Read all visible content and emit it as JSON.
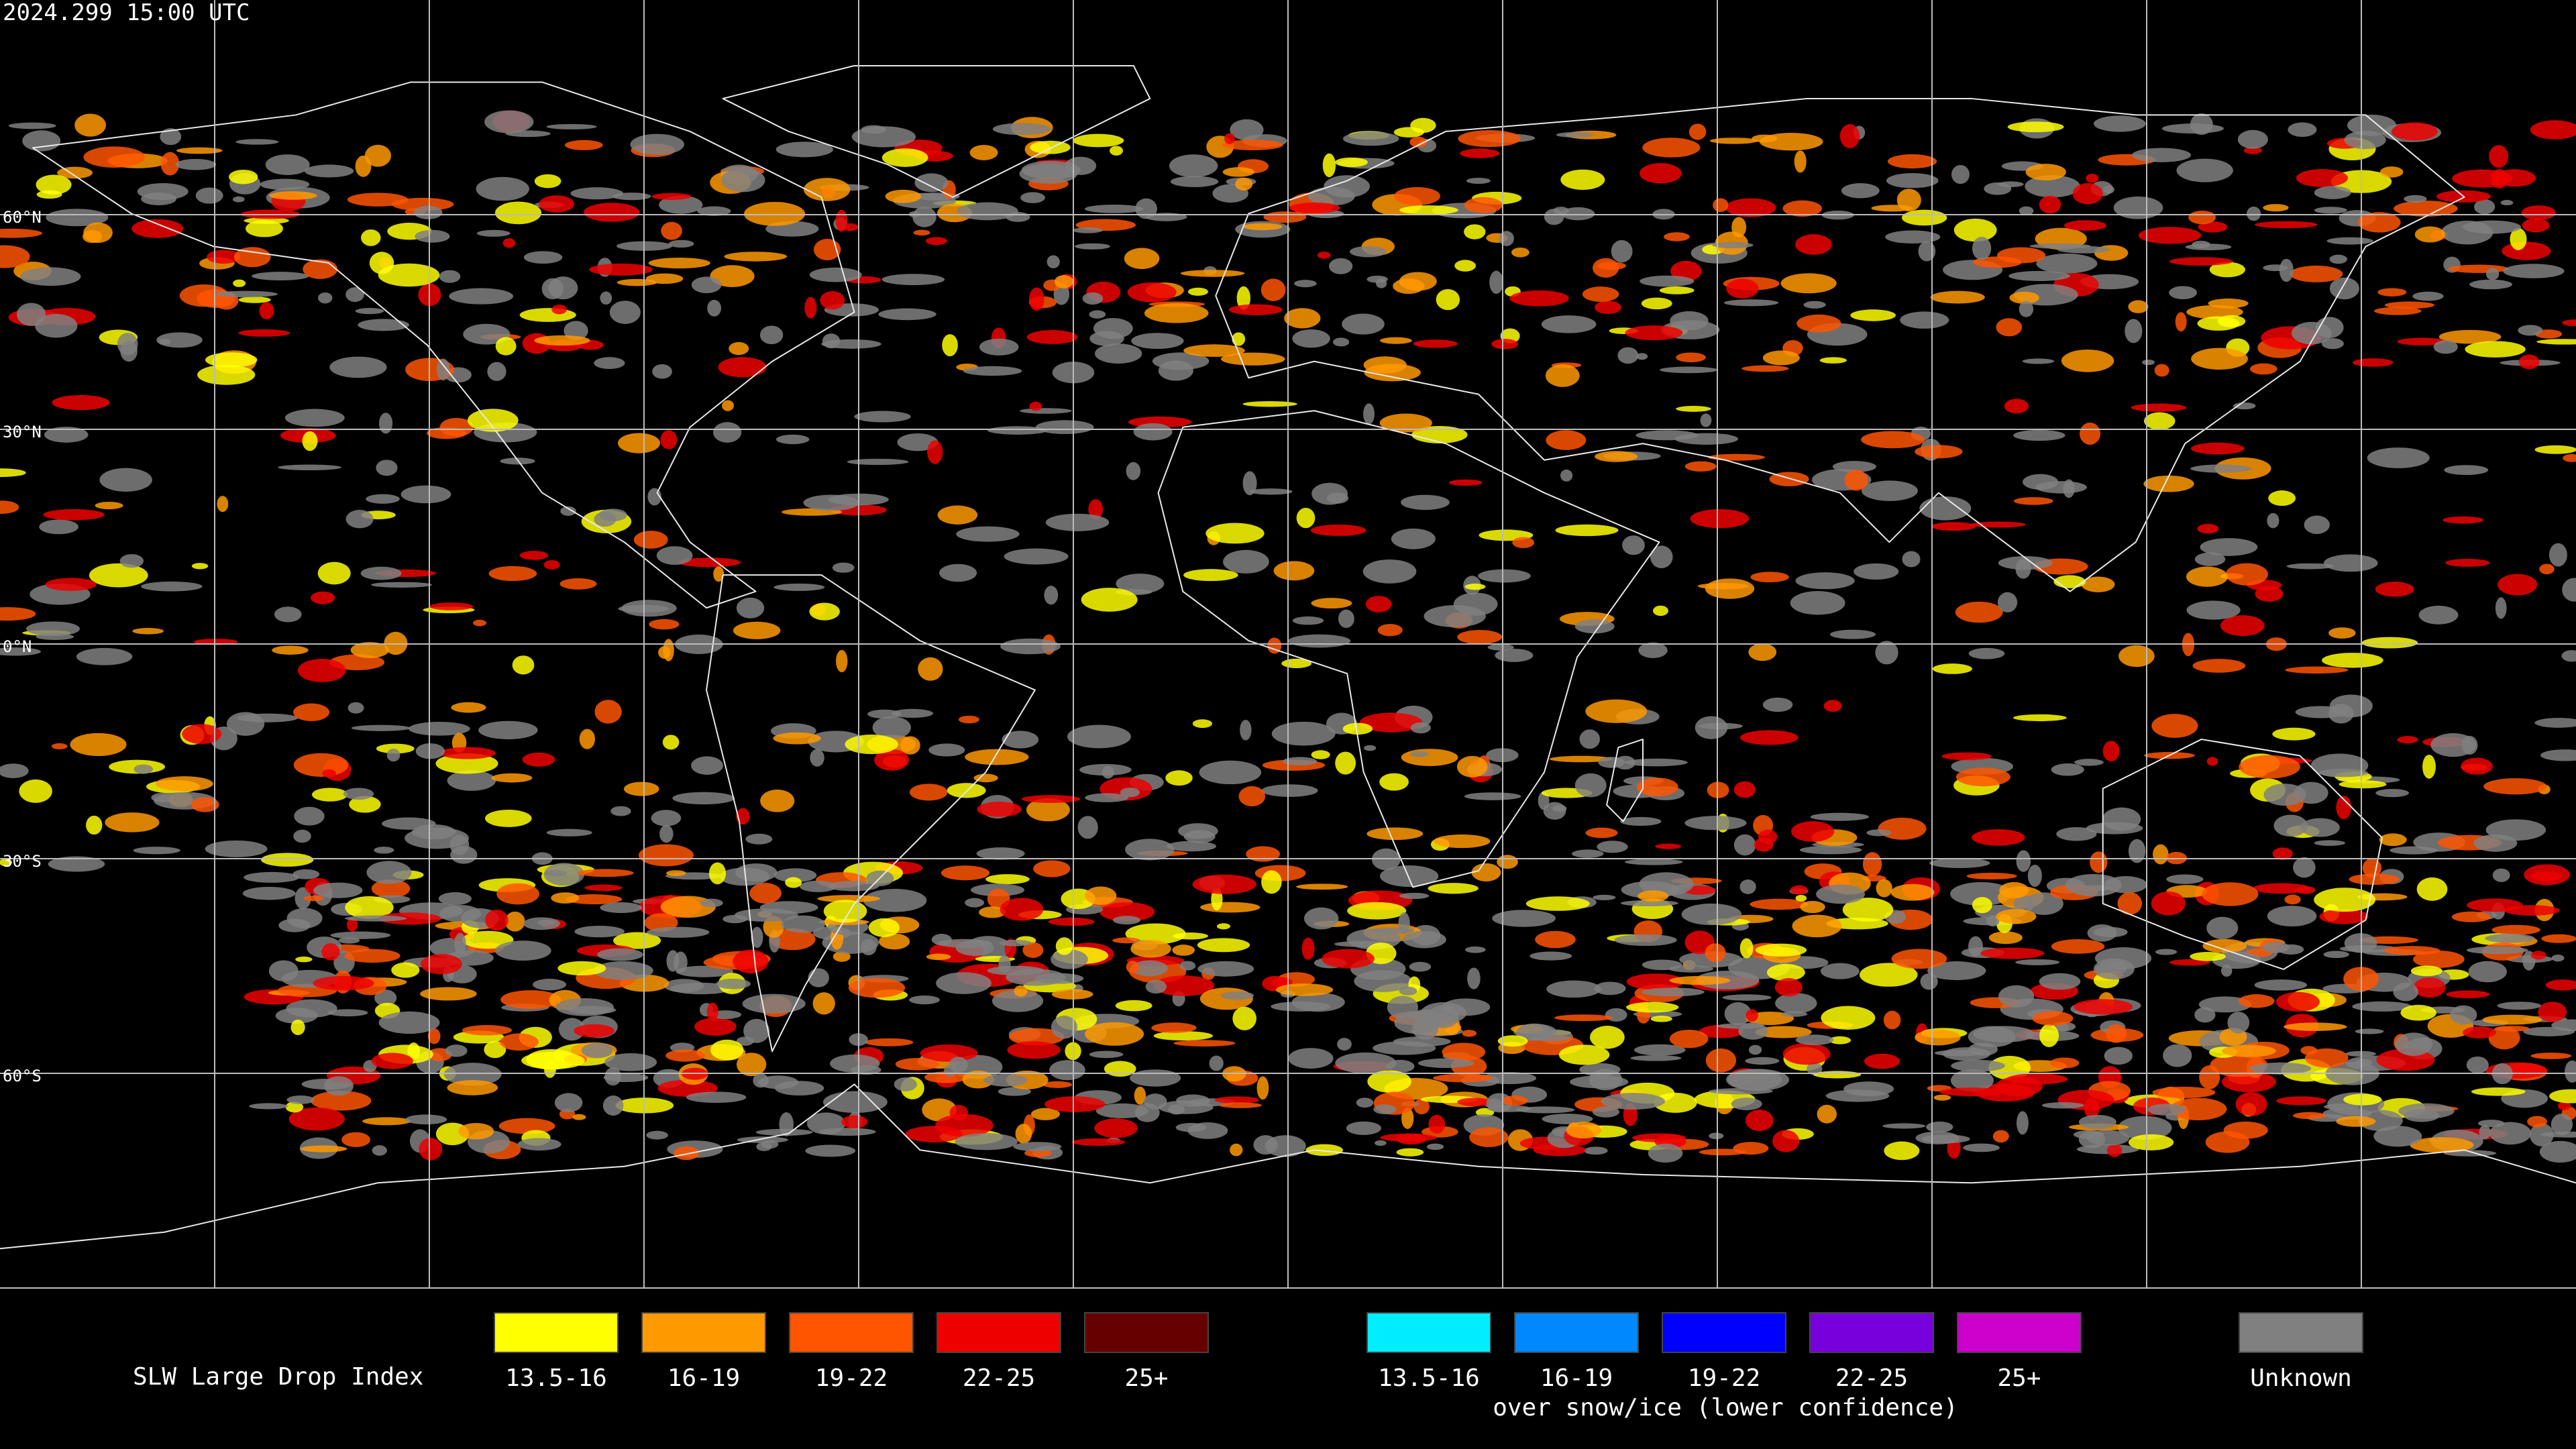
{
  "header": {
    "timestamp": "2024.299 15:00 UTC"
  },
  "map": {
    "latitude_labels": [
      "60°N",
      "30°N",
      "0°N",
      "30°S",
      "60°S"
    ]
  },
  "legend": {
    "title": "SLW Large Drop Index",
    "classes": [
      {
        "label": "13.5-16",
        "color": "#ffff00"
      },
      {
        "label": "16-19",
        "color": "#ff9900"
      },
      {
        "label": "19-22",
        "color": "#ff5500"
      },
      {
        "label": "22-25",
        "color": "#ee0000"
      },
      {
        "label": "25+",
        "color": "#660000"
      }
    ],
    "snow_classes": [
      {
        "label": "13.5-16",
        "color": "#00eeff"
      },
      {
        "label": "16-19",
        "color": "#0088ff"
      },
      {
        "label": "19-22",
        "color": "#0000ff"
      },
      {
        "label": "22-25",
        "color": "#7700dd"
      },
      {
        "label": "25+",
        "color": "#cc00cc"
      }
    ],
    "snow_note": "over snow/ice (lower confidence)",
    "unknown": {
      "label": "Unknown",
      "color": "#808080"
    }
  }
}
